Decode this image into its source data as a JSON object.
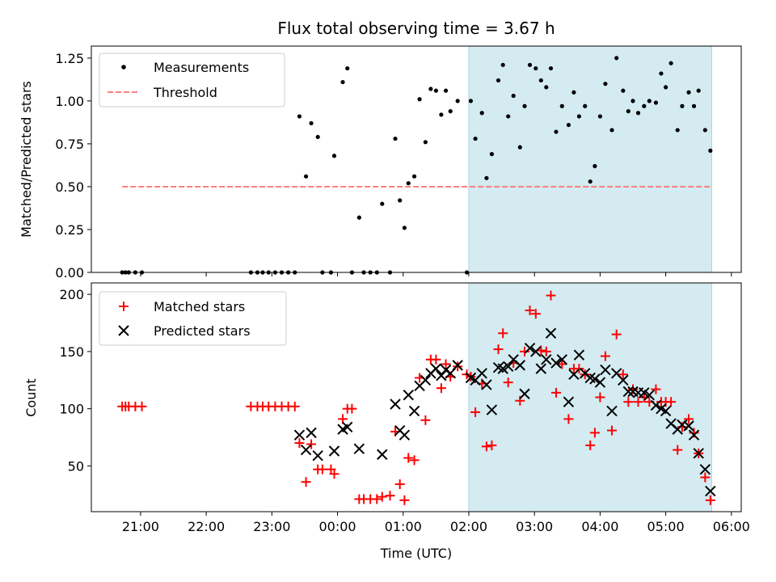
{
  "chart_data": [
    {
      "type": "scatter",
      "title": "Flux total observing time = 3.67 h",
      "ylabel": "Matched/Predicted stars",
      "xlabel": "",
      "xlim": [
        20.25,
        30.15
      ],
      "ylim": [
        0,
        1.32
      ],
      "yticks": [
        0,
        0.25,
        0.5,
        0.75,
        1.0,
        1.25
      ],
      "ytick_labels": [
        "0.00",
        "0.25",
        "0.50",
        "0.75",
        "1.00",
        "1.25"
      ],
      "shaded_region": {
        "x_from": 26.0,
        "x_to": 29.7,
        "color": "#d3ebf1"
      },
      "legend": {
        "location": "top-left",
        "entries": [
          "Measurements",
          "Threshold"
        ]
      },
      "series": [
        {
          "name": "Measurements",
          "marker": "dot",
          "color": "#000000",
          "points": [
            [
              20.72,
              0
            ],
            [
              20.77,
              0
            ],
            [
              20.82,
              0
            ],
            [
              20.92,
              0
            ],
            [
              21.02,
              0
            ],
            [
              22.68,
              0
            ],
            [
              22.78,
              0
            ],
            [
              22.86,
              0
            ],
            [
              22.95,
              0
            ],
            [
              23.05,
              0
            ],
            [
              23.15,
              0
            ],
            [
              23.25,
              0
            ],
            [
              23.35,
              0
            ],
            [
              23.42,
              0.91
            ],
            [
              23.52,
              0.56
            ],
            [
              23.6,
              0.87
            ],
            [
              23.7,
              0.79
            ],
            [
              23.77,
              0
            ],
            [
              23.9,
              0
            ],
            [
              23.95,
              0.68
            ],
            [
              24.08,
              1.11
            ],
            [
              24.15,
              1.19
            ],
            [
              24.22,
              0
            ],
            [
              24.33,
              0.32
            ],
            [
              24.4,
              0
            ],
            [
              24.5,
              0
            ],
            [
              24.6,
              0
            ],
            [
              24.68,
              0.4
            ],
            [
              24.8,
              0
            ],
            [
              24.88,
              0.78
            ],
            [
              24.95,
              0.42
            ],
            [
              25.02,
              0.26
            ],
            [
              25.08,
              0.52
            ],
            [
              25.17,
              0.56
            ],
            [
              25.25,
              1.01
            ],
            [
              25.34,
              0.76
            ],
            [
              25.42,
              1.07
            ],
            [
              25.5,
              1.06
            ],
            [
              25.58,
              0.92
            ],
            [
              25.65,
              1.06
            ],
            [
              25.72,
              0.94
            ],
            [
              25.83,
              1.0
            ],
            [
              25.97,
              0
            ],
            [
              26.03,
              1.0
            ],
            [
              26.1,
              0.78
            ],
            [
              26.2,
              0.93
            ],
            [
              26.27,
              0.55
            ],
            [
              26.35,
              0.69
            ],
            [
              26.45,
              1.12
            ],
            [
              26.52,
              1.21
            ],
            [
              26.6,
              0.91
            ],
            [
              26.68,
              1.03
            ],
            [
              26.78,
              0.73
            ],
            [
              26.85,
              0.97
            ],
            [
              26.93,
              1.21
            ],
            [
              27.02,
              1.19
            ],
            [
              27.1,
              1.12
            ],
            [
              27.18,
              1.08
            ],
            [
              27.25,
              1.19
            ],
            [
              27.33,
              0.82
            ],
            [
              27.42,
              0.97
            ],
            [
              27.52,
              0.86
            ],
            [
              27.6,
              1.05
            ],
            [
              27.68,
              0.91
            ],
            [
              27.77,
              0.97
            ],
            [
              27.85,
              0.53
            ],
            [
              27.92,
              0.62
            ],
            [
              28.0,
              0.91
            ],
            [
              28.08,
              1.1
            ],
            [
              28.18,
              0.83
            ],
            [
              28.25,
              1.25
            ],
            [
              28.35,
              1.06
            ],
            [
              28.43,
              0.94
            ],
            [
              28.5,
              1.0
            ],
            [
              28.58,
              0.93
            ],
            [
              28.67,
              0.97
            ],
            [
              28.75,
              1.0
            ],
            [
              28.85,
              0.99
            ],
            [
              28.93,
              1.16
            ],
            [
              29.0,
              1.08
            ],
            [
              29.08,
              1.22
            ],
            [
              29.18,
              0.83
            ],
            [
              29.25,
              0.97
            ],
            [
              29.35,
              1.05
            ],
            [
              29.43,
              0.97
            ],
            [
              29.5,
              1.06
            ],
            [
              29.6,
              0.83
            ],
            [
              29.68,
              0.71
            ]
          ]
        },
        {
          "name": "Threshold",
          "marker": "dashed-line",
          "color": "#ff7f7f",
          "x": [
            20.72,
            29.7
          ],
          "y": [
            0.5,
            0.5
          ]
        }
      ]
    },
    {
      "type": "scatter",
      "title": "",
      "xlabel": "Time (UTC)",
      "ylabel": "Count",
      "xlim": [
        20.25,
        30.15
      ],
      "ylim": [
        10,
        210
      ],
      "xticks": [
        21,
        22,
        23,
        24,
        25,
        26,
        27,
        28,
        29,
        30
      ],
      "xtick_labels": [
        "21:00",
        "22:00",
        "23:00",
        "00:00",
        "01:00",
        "02:00",
        "03:00",
        "04:00",
        "05:00",
        "06:00"
      ],
      "yticks": [
        50,
        100,
        150,
        200
      ],
      "ytick_labels": [
        "50",
        "100",
        "150",
        "200"
      ],
      "shaded_region": {
        "x_from": 26.0,
        "x_to": 29.7,
        "color": "#d3ebf1"
      },
      "legend": {
        "location": "top-left",
        "entries": [
          "Matched stars",
          "Predicted stars"
        ]
      },
      "series": [
        {
          "name": "Matched stars",
          "marker": "plus",
          "color": "#ff0000",
          "points": [
            [
              20.72,
              102
            ],
            [
              20.77,
              102
            ],
            [
              20.82,
              102
            ],
            [
              20.92,
              102
            ],
            [
              21.02,
              102
            ],
            [
              22.68,
              102
            ],
            [
              22.78,
              102
            ],
            [
              22.86,
              102
            ],
            [
              22.95,
              102
            ],
            [
              23.05,
              102
            ],
            [
              23.15,
              102
            ],
            [
              23.25,
              102
            ],
            [
              23.35,
              102
            ],
            [
              23.42,
              70
            ],
            [
              23.52,
              36
            ],
            [
              23.6,
              69
            ],
            [
              23.7,
              47
            ],
            [
              23.77,
              47
            ],
            [
              23.9,
              47
            ],
            [
              23.95,
              43
            ],
            [
              24.08,
              91
            ],
            [
              24.15,
              100
            ],
            [
              24.22,
              100
            ],
            [
              24.33,
              21
            ],
            [
              24.4,
              21
            ],
            [
              24.5,
              21
            ],
            [
              24.6,
              21
            ],
            [
              24.68,
              23
            ],
            [
              24.8,
              24
            ],
            [
              24.88,
              80
            ],
            [
              24.95,
              34
            ],
            [
              25.02,
              20
            ],
            [
              25.08,
              57
            ],
            [
              25.17,
              55
            ],
            [
              25.25,
              127
            ],
            [
              25.34,
              90
            ],
            [
              25.42,
              143
            ],
            [
              25.5,
              143
            ],
            [
              25.58,
              118
            ],
            [
              25.65,
              139
            ],
            [
              25.72,
              128
            ],
            [
              25.83,
              137
            ],
            [
              25.97,
              130
            ],
            [
              26.03,
              128
            ],
            [
              26.1,
              97
            ],
            [
              26.2,
              122
            ],
            [
              26.27,
              67
            ],
            [
              26.35,
              68
            ],
            [
              26.45,
              152
            ],
            [
              26.52,
              166
            ],
            [
              26.6,
              123
            ],
            [
              26.68,
              140
            ],
            [
              26.78,
              107
            ],
            [
              26.85,
              150
            ],
            [
              26.93,
              186
            ],
            [
              27.02,
              183
            ],
            [
              27.1,
              151
            ],
            [
              27.18,
              150
            ],
            [
              27.25,
              199
            ],
            [
              27.33,
              114
            ],
            [
              27.42,
              139
            ],
            [
              27.52,
              91
            ],
            [
              27.6,
              135
            ],
            [
              27.68,
              135
            ],
            [
              27.77,
              130
            ],
            [
              27.85,
              68
            ],
            [
              27.92,
              79
            ],
            [
              28.0,
              110
            ],
            [
              28.08,
              146
            ],
            [
              28.18,
              81
            ],
            [
              28.25,
              165
            ],
            [
              28.35,
              130
            ],
            [
              28.43,
              106
            ],
            [
              28.5,
              117
            ],
            [
              28.58,
              106
            ],
            [
              28.67,
              110
            ],
            [
              28.75,
              106
            ],
            [
              28.85,
              117
            ],
            [
              28.93,
              106
            ],
            [
              29.0,
              106
            ],
            [
              29.08,
              106
            ],
            [
              29.18,
              64
            ],
            [
              29.25,
              84
            ],
            [
              29.35,
              91
            ],
            [
              29.43,
              79
            ],
            [
              29.5,
              61
            ],
            [
              29.6,
              40
            ],
            [
              29.68,
              20
            ]
          ]
        },
        {
          "name": "Predicted stars",
          "marker": "x",
          "color": "#000000",
          "points": [
            [
              23.42,
              77
            ],
            [
              23.52,
              64
            ],
            [
              23.6,
              79
            ],
            [
              23.7,
              59
            ],
            [
              23.95,
              63
            ],
            [
              24.08,
              82
            ],
            [
              24.15,
              84
            ],
            [
              24.33,
              65
            ],
            [
              24.68,
              60
            ],
            [
              24.88,
              104
            ],
            [
              24.95,
              81
            ],
            [
              25.02,
              77
            ],
            [
              25.08,
              112
            ],
            [
              25.17,
              98
            ],
            [
              25.25,
              120
            ],
            [
              25.34,
              125
            ],
            [
              25.42,
              131
            ],
            [
              25.5,
              135
            ],
            [
              25.58,
              129
            ],
            [
              25.65,
              134
            ],
            [
              25.72,
              131
            ],
            [
              25.83,
              138
            ],
            [
              26.03,
              127
            ],
            [
              26.1,
              125
            ],
            [
              26.2,
              131
            ],
            [
              26.27,
              121
            ],
            [
              26.35,
              99
            ],
            [
              26.45,
              136
            ],
            [
              26.52,
              135
            ],
            [
              26.6,
              137
            ],
            [
              26.68,
              143
            ],
            [
              26.78,
              138
            ],
            [
              26.85,
              113
            ],
            [
              26.93,
              153
            ],
            [
              27.02,
              150
            ],
            [
              27.1,
              135
            ],
            [
              27.18,
              143
            ],
            [
              27.25,
              166
            ],
            [
              27.33,
              140
            ],
            [
              27.42,
              143
            ],
            [
              27.52,
              106
            ],
            [
              27.6,
              130
            ],
            [
              27.68,
              147
            ],
            [
              27.77,
              131
            ],
            [
              27.85,
              127
            ],
            [
              27.92,
              126
            ],
            [
              28.0,
              123
            ],
            [
              28.08,
              134
            ],
            [
              28.18,
              98
            ],
            [
              28.25,
              131
            ],
            [
              28.35,
              125
            ],
            [
              28.43,
              115
            ],
            [
              28.5,
              115
            ],
            [
              28.58,
              114
            ],
            [
              28.67,
              114
            ],
            [
              28.75,
              112
            ],
            [
              28.85,
              103
            ],
            [
              28.93,
              100
            ],
            [
              29.0,
              98
            ],
            [
              29.08,
              87
            ],
            [
              29.18,
              82
            ],
            [
              29.25,
              86
            ],
            [
              29.35,
              85
            ],
            [
              29.43,
              77
            ],
            [
              29.5,
              61
            ],
            [
              29.6,
              47
            ],
            [
              29.68,
              28
            ]
          ]
        }
      ]
    }
  ]
}
